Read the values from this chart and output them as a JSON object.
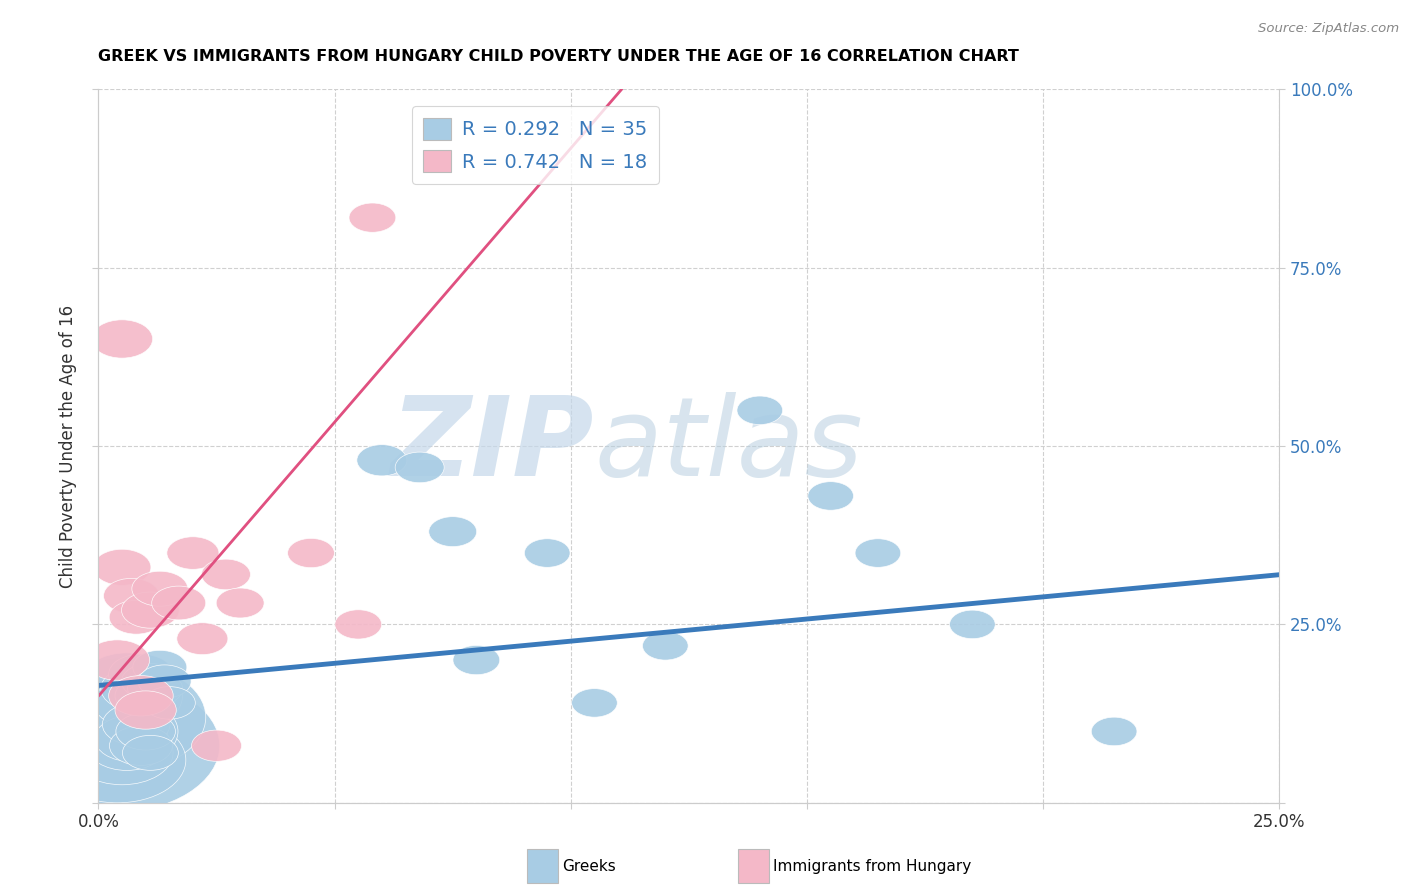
{
  "title": "GREEK VS IMMIGRANTS FROM HUNGARY CHILD POVERTY UNDER THE AGE OF 16 CORRELATION CHART",
  "source": "Source: ZipAtlas.com",
  "ylabel": "Child Poverty Under the Age of 16",
  "xlim": [
    0.0,
    0.25
  ],
  "ylim": [
    0.0,
    1.0
  ],
  "xticks": [
    0.0,
    0.05,
    0.1,
    0.15,
    0.2,
    0.25
  ],
  "yticks": [
    0.0,
    0.25,
    0.5,
    0.75,
    1.0
  ],
  "legend_blue_label": "R = 0.292   N = 35",
  "legend_pink_label": "R = 0.742   N = 18",
  "blue_color": "#a8cce4",
  "pink_color": "#f4b8c8",
  "blue_line_color": "#3a7abb",
  "pink_line_color": "#e05080",
  "watermark_zip": "ZIP",
  "watermark_atlas": "atlas",
  "watermark_color_zip": "#c5d8ea",
  "watermark_color_atlas": "#b8cfe0",
  "R_blue": 0.292,
  "R_pink": 0.742,
  "greek_x": [
    0.003,
    0.004,
    0.004,
    0.005,
    0.005,
    0.005,
    0.006,
    0.006,
    0.006,
    0.007,
    0.007,
    0.008,
    0.008,
    0.009,
    0.009,
    0.01,
    0.01,
    0.011,
    0.011,
    0.012,
    0.013,
    0.014,
    0.015,
    0.06,
    0.068,
    0.075,
    0.08,
    0.095,
    0.105,
    0.12,
    0.14,
    0.155,
    0.165,
    0.185,
    0.215
  ],
  "greek_y": [
    0.08,
    0.12,
    0.06,
    0.15,
    0.1,
    0.07,
    0.17,
    0.12,
    0.08,
    0.14,
    0.09,
    0.16,
    0.11,
    0.18,
    0.08,
    0.15,
    0.1,
    0.17,
    0.07,
    0.16,
    0.19,
    0.17,
    0.14,
    0.48,
    0.47,
    0.38,
    0.2,
    0.35,
    0.14,
    0.22,
    0.55,
    0.43,
    0.35,
    0.25,
    0.1
  ],
  "greek_size": [
    2200,
    1500,
    900,
    700,
    600,
    500,
    400,
    350,
    300,
    280,
    260,
    240,
    220,
    200,
    190,
    180,
    170,
    160,
    150,
    145,
    140,
    135,
    130,
    120,
    115,
    110,
    105,
    100,
    100,
    100,
    100,
    100,
    100,
    100,
    100
  ],
  "hungary_x": [
    0.004,
    0.005,
    0.005,
    0.007,
    0.008,
    0.009,
    0.01,
    0.011,
    0.013,
    0.017,
    0.02,
    0.022,
    0.025,
    0.027,
    0.03,
    0.045,
    0.055,
    0.058
  ],
  "hungary_y": [
    0.2,
    0.65,
    0.33,
    0.29,
    0.26,
    0.15,
    0.13,
    0.27,
    0.3,
    0.28,
    0.35,
    0.23,
    0.08,
    0.32,
    0.28,
    0.35,
    0.25,
    0.82
  ],
  "hungary_size": [
    200,
    180,
    160,
    150,
    140,
    200,
    180,
    160,
    150,
    140,
    130,
    125,
    120,
    115,
    110,
    105,
    105,
    105
  ]
}
